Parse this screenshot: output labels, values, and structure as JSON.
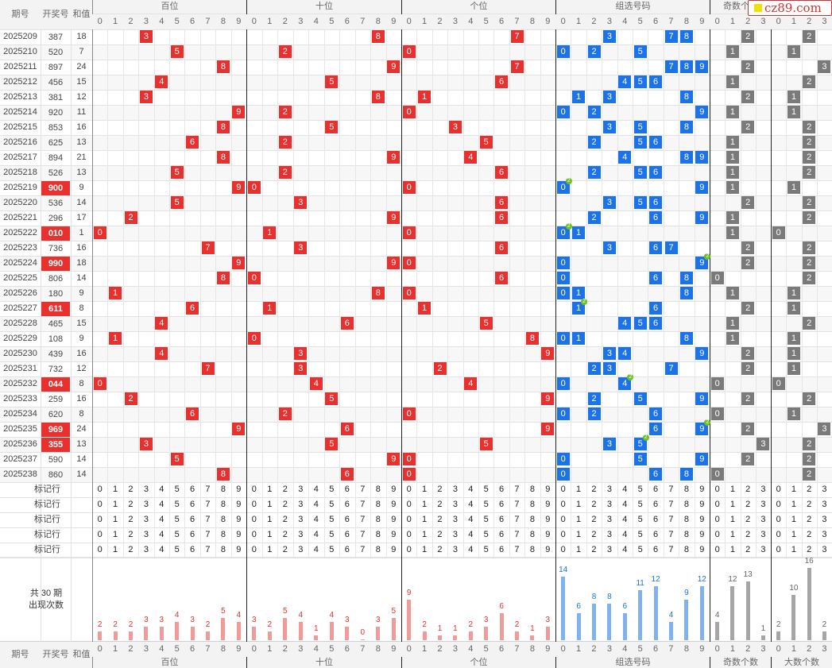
{
  "logo": "cz89.com",
  "header": {
    "period": "期号",
    "number": "开奖号",
    "sum": "和值",
    "groups": [
      "百位",
      "十位",
      "个位",
      "组选号码",
      "奇数个数",
      "大数个数"
    ],
    "footer_groups": [
      "百位",
      "十位",
      "个位",
      "组选号码",
      "奇数个数",
      "大数个数"
    ],
    "digits": [
      "0",
      "1",
      "2",
      "3",
      "4",
      "5",
      "6",
      "7",
      "8",
      "9"
    ],
    "counts": [
      "0",
      "1",
      "2",
      "3"
    ]
  },
  "rows": [
    {
      "period": "2025209",
      "number": "387",
      "sum": "18",
      "special": false
    },
    {
      "period": "2025210",
      "number": "520",
      "sum": "7",
      "special": false
    },
    {
      "period": "2025211",
      "number": "897",
      "sum": "24",
      "special": false
    },
    {
      "period": "2025212",
      "number": "456",
      "sum": "15",
      "special": false
    },
    {
      "period": "2025213",
      "number": "381",
      "sum": "12",
      "special": false
    },
    {
      "period": "2025214",
      "number": "920",
      "sum": "11",
      "special": false
    },
    {
      "period": "2025215",
      "number": "853",
      "sum": "16",
      "special": false
    },
    {
      "period": "2025216",
      "number": "625",
      "sum": "13",
      "special": false
    },
    {
      "period": "2025217",
      "number": "894",
      "sum": "21",
      "special": false
    },
    {
      "period": "2025218",
      "number": "526",
      "sum": "13",
      "special": false
    },
    {
      "period": "2025219",
      "number": "900",
      "sum": "9",
      "special": true
    },
    {
      "period": "2025220",
      "number": "536",
      "sum": "14",
      "special": false
    },
    {
      "period": "2025221",
      "number": "296",
      "sum": "17",
      "special": false
    },
    {
      "period": "2025222",
      "number": "010",
      "sum": "1",
      "special": true
    },
    {
      "period": "2025223",
      "number": "736",
      "sum": "16",
      "special": false
    },
    {
      "period": "2025224",
      "number": "990",
      "sum": "18",
      "special": true
    },
    {
      "period": "2025225",
      "number": "806",
      "sum": "14",
      "special": false
    },
    {
      "period": "2025226",
      "number": "180",
      "sum": "9",
      "special": false
    },
    {
      "period": "2025227",
      "number": "611",
      "sum": "8",
      "special": true
    },
    {
      "period": "2025228",
      "number": "465",
      "sum": "15",
      "special": false
    },
    {
      "period": "2025229",
      "number": "108",
      "sum": "9",
      "special": false
    },
    {
      "period": "2025230",
      "number": "439",
      "sum": "16",
      "special": false
    },
    {
      "period": "2025231",
      "number": "732",
      "sum": "12",
      "special": false
    },
    {
      "period": "2025232",
      "number": "044",
      "sum": "8",
      "special": true
    },
    {
      "period": "2025233",
      "number": "259",
      "sum": "16",
      "special": false
    },
    {
      "period": "2025234",
      "number": "620",
      "sum": "8",
      "special": false
    },
    {
      "period": "2025235",
      "number": "969",
      "sum": "24",
      "special": true
    },
    {
      "period": "2025236",
      "number": "355",
      "sum": "13",
      "special": true
    },
    {
      "period": "2025237",
      "number": "590",
      "sum": "14",
      "special": false
    },
    {
      "period": "2025238",
      "number": "860",
      "sum": "14",
      "special": false
    }
  ],
  "mark_rows": [
    "标记行",
    "标记行",
    "标记行",
    "标记行",
    "标记行"
  ],
  "summary": {
    "line1": "共 30 期",
    "line2": "出现次数"
  },
  "stats": {
    "hundreds": [
      2,
      2,
      2,
      3,
      3,
      4,
      3,
      2,
      5,
      4
    ],
    "tens": [
      3,
      2,
      5,
      4,
      1,
      4,
      3,
      0,
      3,
      5
    ],
    "ones": [
      9,
      2,
      1,
      1,
      2,
      3,
      6,
      2,
      1,
      3
    ],
    "group": [
      14,
      6,
      8,
      8,
      6,
      11,
      12,
      4,
      9,
      12
    ],
    "odd": [
      4,
      12,
      13,
      1
    ],
    "big": [
      2,
      10,
      16,
      2
    ]
  },
  "colors": {
    "red": "#e8312e",
    "blue": "#1c72e8",
    "gray": "#7a7a7a",
    "red_bar": "#f09a9a",
    "blue_bar": "#7fb2ee",
    "gray_bar": "#a5a5a5"
  }
}
